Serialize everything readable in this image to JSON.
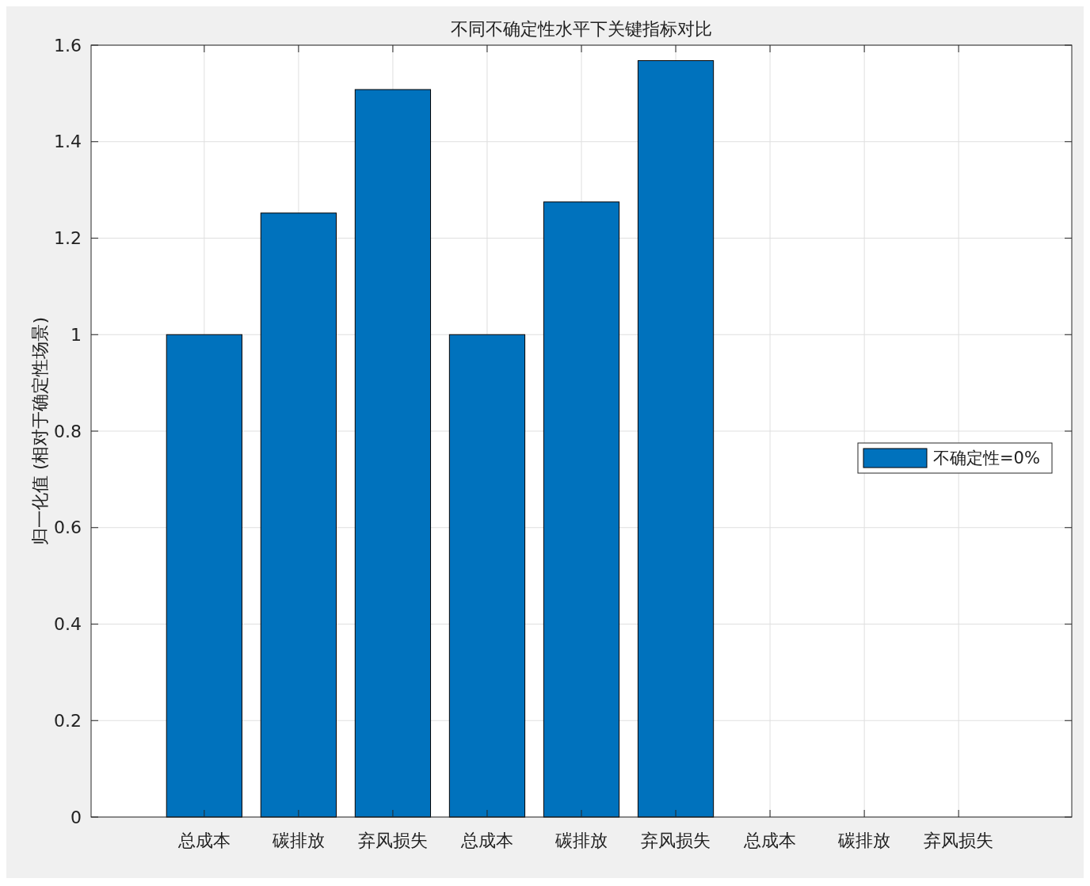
{
  "chart_data": {
    "type": "bar",
    "title": "不同不确定性水平下关键指标对比",
    "ylabel": "归一化值 (相对于确定性场景)",
    "categories": [
      "总成本",
      "碳排放",
      "弃风损失",
      "总成本",
      "碳排放",
      "弃风损失",
      "总成本",
      "碳排放",
      "弃风损失"
    ],
    "series": [
      {
        "name": "不确定性=0%",
        "color": "#0072bd",
        "values": [
          1,
          1.252,
          1.508,
          1,
          1.275,
          1.568,
          null,
          null,
          null
        ]
      }
    ],
    "ylim": [
      0,
      1.6
    ],
    "yticks": [
      0,
      0.2,
      0.4,
      0.6,
      0.8,
      1,
      1.2,
      1.4,
      1.6
    ],
    "grid": true,
    "legend": "right"
  }
}
